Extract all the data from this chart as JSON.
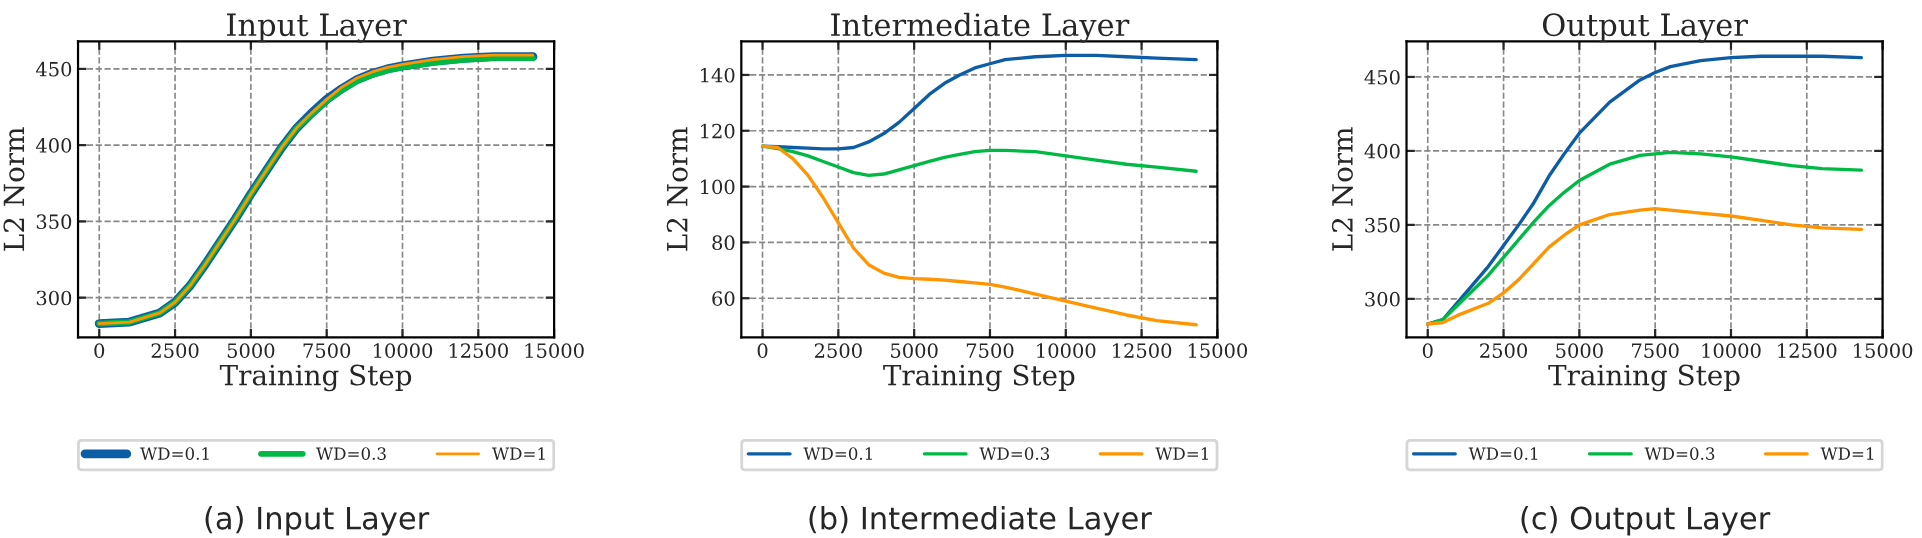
{
  "chart_data": [
    {
      "type": "line",
      "title": "Input Layer",
      "xlabel": "Training Step",
      "ylabel": "L2 Norm",
      "xlim": [
        -700,
        15000
      ],
      "xticks": [
        0,
        2500,
        5000,
        7500,
        10000,
        12500,
        15000
      ],
      "ylim": [
        274,
        468
      ],
      "yticks": [
        300,
        350,
        400,
        450
      ],
      "grid": true,
      "legend": "bottom",
      "line_style": "solid",
      "x": [
        0,
        1000,
        2000,
        2500,
        3000,
        3500,
        4000,
        4500,
        5000,
        5500,
        6000,
        6500,
        7000,
        7500,
        8000,
        8500,
        9000,
        9500,
        10000,
        11000,
        12000,
        13000,
        14300
      ],
      "series": [
        {
          "name": "WD=0.1",
          "color": "#0c5da5",
          "values": [
            283,
            284,
            290,
            297,
            308,
            322,
            337,
            352,
            368,
            383,
            398,
            411,
            421,
            430,
            437,
            443,
            447,
            450,
            452,
            455,
            457,
            458,
            458
          ]
        },
        {
          "name": "WD=0.3",
          "color": "#00b945",
          "values": [
            283,
            284,
            290,
            297,
            308,
            322,
            337,
            352,
            368,
            383,
            398,
            411,
            420,
            429,
            436,
            442,
            446,
            449,
            451,
            454,
            456,
            457,
            457
          ]
        },
        {
          "name": "WD=1",
          "color": "#ff9500",
          "values": [
            283,
            284,
            290,
            297,
            308,
            322,
            337,
            352,
            368,
            383,
            398,
            411,
            421,
            430,
            438,
            444,
            448,
            451,
            453,
            456,
            458,
            459,
            459
          ]
        }
      ],
      "annotations": [
        "(a) Input Layer"
      ]
    },
    {
      "type": "line",
      "title": "Intermediate Layer",
      "xlabel": "Training Step",
      "ylabel": "L2 Norm",
      "xlim": [
        -700,
        15000
      ],
      "xticks": [
        0,
        2500,
        5000,
        7500,
        10000,
        12500,
        15000
      ],
      "ylim": [
        46,
        152
      ],
      "yticks": [
        60,
        80,
        100,
        120,
        140
      ],
      "grid": true,
      "legend": "bottom",
      "line_style": "solid",
      "x": [
        0,
        500,
        1000,
        1500,
        2000,
        2500,
        3000,
        3500,
        4000,
        4500,
        5000,
        5500,
        6000,
        6500,
        7000,
        7500,
        8000,
        9000,
        10000,
        11000,
        12000,
        13000,
        14300
      ],
      "series": [
        {
          "name": "WD=0.1",
          "color": "#0c5da5",
          "values": [
            114.5,
            114.3,
            114,
            113.8,
            113.5,
            113.5,
            114,
            116,
            119,
            123,
            128,
            133,
            137,
            140,
            142.5,
            144,
            145.5,
            146.5,
            147,
            147,
            146.5,
            146,
            145.5
          ]
        },
        {
          "name": "WD=0.3",
          "color": "#00b945",
          "values": [
            114.5,
            113.6,
            112.5,
            111,
            109,
            107,
            105,
            104,
            104.5,
            106,
            107.5,
            109,
            110.5,
            111.5,
            112.5,
            113,
            113,
            112.5,
            111,
            109.5,
            108,
            107,
            105.5
          ]
        },
        {
          "name": "WD=1",
          "color": "#ff9500",
          "values": [
            114.5,
            114,
            110,
            104,
            96,
            87,
            78,
            72,
            69,
            67.5,
            67,
            66.8,
            66.5,
            66,
            65.5,
            65,
            64,
            61.5,
            59,
            56.5,
            54,
            52,
            50.5
          ]
        }
      ],
      "annotations": [
        "(b) Intermediate Layer"
      ]
    },
    {
      "type": "line",
      "title": "Output Layer",
      "xlabel": "Training Step",
      "ylabel": "L2 Norm",
      "xlim": [
        -700,
        15000
      ],
      "xticks": [
        0,
        2500,
        5000,
        7500,
        10000,
        12500,
        15000
      ],
      "ylim": [
        274,
        474
      ],
      "yticks": [
        300,
        350,
        400,
        450
      ],
      "grid": true,
      "legend": "bottom",
      "line_style": "solid",
      "x": [
        0,
        500,
        1000,
        2000,
        2500,
        3000,
        3500,
        4000,
        4500,
        5000,
        6000,
        7000,
        7500,
        8000,
        9000,
        10000,
        11000,
        12000,
        13000,
        14300
      ],
      "series": [
        {
          "name": "WD=0.1",
          "color": "#0c5da5",
          "values": [
            283,
            286,
            298,
            322,
            336,
            350,
            365,
            383,
            398,
            412,
            433,
            448,
            453,
            457,
            461,
            463,
            464,
            464,
            464,
            463
          ]
        },
        {
          "name": "WD=0.3",
          "color": "#00b945",
          "values": [
            283,
            286,
            296,
            316,
            328,
            340,
            352,
            363,
            372,
            380,
            391,
            397,
            398,
            399,
            398,
            396,
            393,
            390,
            388,
            387
          ]
        },
        {
          "name": "WD=1",
          "color": "#ff9500",
          "values": [
            283,
            284,
            289,
            297,
            304,
            313,
            324,
            335,
            343,
            350,
            357,
            360,
            361,
            360,
            358,
            356,
            353,
            350,
            348,
            347
          ]
        }
      ],
      "annotations": [
        "(c) Output Layer"
      ]
    }
  ]
}
